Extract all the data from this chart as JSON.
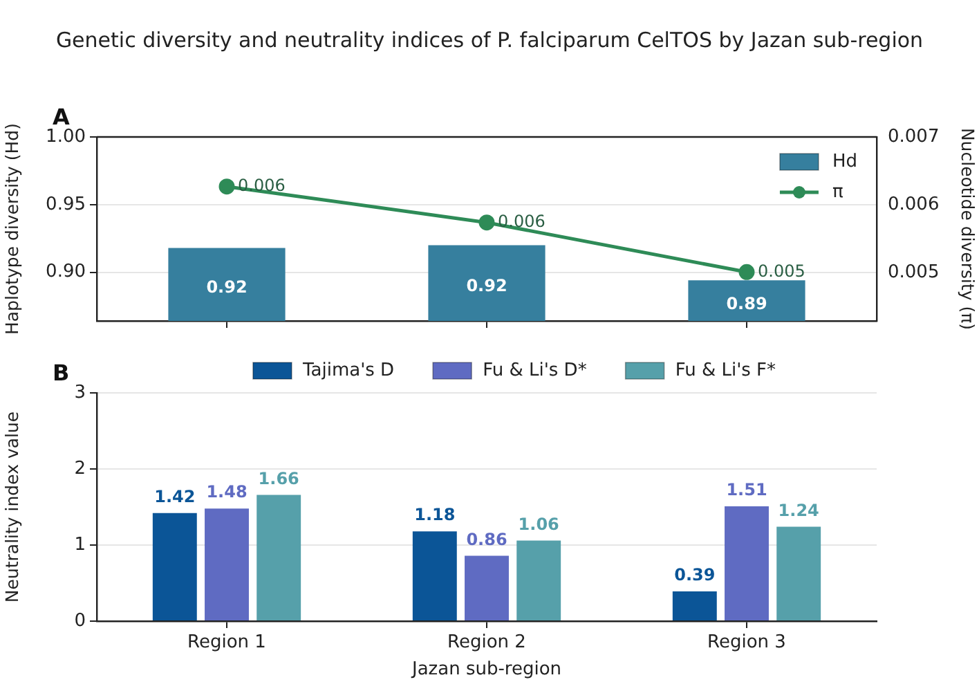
{
  "chart_data": [
    {
      "type": "bar",
      "title": "Genetic diversity and neutrality indices of P. falciparum CelTOS by Jazan sub-region",
      "annotations": [
        "A"
      ],
      "categories": [
        null,
        null,
        null
      ],
      "ylabel": "Haplotype diversity (Hd)",
      "y2label": "Nucleotide diversity (π)",
      "ylim": [
        0.864,
        1.0
      ],
      "yticks": [
        {
          "value": 0.9,
          "label": "0.90"
        },
        {
          "value": 0.95,
          "label": "0.95"
        },
        {
          "value": 1.0,
          "label": "1.00"
        }
      ],
      "y2lim": [
        0.00429,
        0.007
      ],
      "y2ticks": [
        0.005,
        0.006,
        0.007
      ],
      "series": [
        {
          "name": "Hd",
          "color": "#367f9e",
          "values": [
            0.918,
            0.92,
            0.894
          ],
          "value_labels": [
            "0.92",
            "0.92",
            "0.89"
          ]
        },
        {
          "name": "π",
          "type": "line",
          "axis": "y2",
          "color": "#2e8b57",
          "values": [
            0.00627,
            0.00574,
            0.00501
          ],
          "value_labels": [
            "0.006",
            "0.006",
            "0.005"
          ]
        }
      ],
      "marker": "circle",
      "legend": "top right",
      "grid": "y",
      "tick_labels": "y"
    },
    {
      "type": "bar",
      "annotations": [
        "B"
      ],
      "categories": [
        "Region 1",
        "Region 2",
        "Region 3"
      ],
      "xlabel": "Jazan sub-region",
      "ylabel": "Neutrality index value",
      "ylim": [
        0,
        3
      ],
      "yticks": [
        0,
        1,
        2,
        3
      ],
      "series": [
        {
          "name": "Tajima's D",
          "color": "#0b5597",
          "values": [
            1.42,
            1.18,
            0.39
          ]
        },
        {
          "name": "Fu & Li's D*",
          "color": "#5f6bc2",
          "values": [
            1.48,
            0.86,
            1.51
          ]
        },
        {
          "name": "Fu & Li's F*",
          "color": "#56a0aa",
          "values": [
            1.66,
            1.06,
            1.24
          ]
        }
      ],
      "data_labels": true,
      "legend": "top",
      "grid": "y"
    }
  ]
}
